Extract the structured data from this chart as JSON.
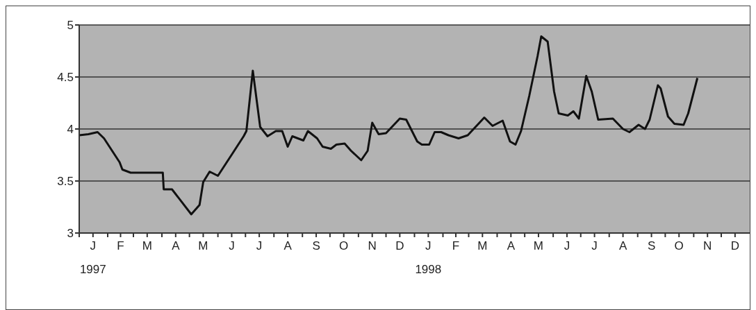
{
  "chart_data": {
    "type": "line",
    "x": [
      "1997-01-01",
      "1997-01-11",
      "1997-01-21",
      "1997-01-28",
      "1997-02-14",
      "1997-02-17",
      "1997-02-26",
      "1997-04-02",
      "1997-04-03",
      "1997-04-12",
      "1997-05-03",
      "1997-05-12",
      "1997-05-16",
      "1997-05-23",
      "1997-06-01",
      "1997-06-18",
      "1997-06-29",
      "1997-07-02",
      "1997-07-09",
      "1997-07-17",
      "1997-07-25",
      "1997-08-03",
      "1997-08-10",
      "1997-08-16",
      "1997-08-21",
      "1997-09-02",
      "1997-09-07",
      "1997-09-17",
      "1997-09-23",
      "1997-10-02",
      "1997-10-08",
      "1997-10-17",
      "1997-10-24",
      "1997-11-04",
      "1997-11-11",
      "1997-11-16",
      "1997-11-23",
      "1997-12-01",
      "1997-12-16",
      "1997-12-23",
      "1998-01-04",
      "1998-01-09",
      "1998-01-17",
      "1998-01-23",
      "1998-01-30",
      "1998-02-07",
      "1998-02-18",
      "1998-02-28",
      "1998-03-18",
      "1998-03-27",
      "1998-04-07",
      "1998-04-15",
      "1998-04-21",
      "1998-04-27",
      "1998-05-06",
      "1998-05-15",
      "1998-05-19",
      "1998-05-26",
      "1998-06-02",
      "1998-06-07",
      "1998-06-17",
      "1998-06-23",
      "1998-06-29",
      "1998-07-07",
      "1998-07-13",
      "1998-07-20",
      "1998-08-05",
      "1998-08-16",
      "1998-08-23",
      "1998-09-02",
      "1998-09-09",
      "1998-09-14",
      "1998-09-23",
      "1998-09-26",
      "1998-10-04",
      "1998-10-11",
      "1998-10-21",
      "1998-10-26",
      "1998-11-05"
    ],
    "series": [
      {
        "color": "#111111",
        "values": [
          3.94,
          3.95,
          3.97,
          3.91,
          3.68,
          3.61,
          3.58,
          3.58,
          3.42,
          3.42,
          3.18,
          3.27,
          3.49,
          3.59,
          3.55,
          3.78,
          3.93,
          3.98,
          4.56,
          4.02,
          3.93,
          3.98,
          3.98,
          3.83,
          3.93,
          3.89,
          3.98,
          3.91,
          3.83,
          3.81,
          3.85,
          3.86,
          3.79,
          3.7,
          3.79,
          4.06,
          3.95,
          3.96,
          4.1,
          4.09,
          3.88,
          3.85,
          3.85,
          3.97,
          3.97,
          3.94,
          3.91,
          3.94,
          4.11,
          4.03,
          4.08,
          3.88,
          3.85,
          3.98,
          4.32,
          4.7,
          4.89,
          4.84,
          4.36,
          4.15,
          4.13,
          4.17,
          4.1,
          4.51,
          4.36,
          4.09,
          4.1,
          4,
          3.97,
          4.04,
          4,
          4.09,
          4.42,
          4.39,
          4.12,
          4.05,
          4.04,
          4.15,
          4.49
        ]
      }
    ],
    "xlim": [
      "1997-01-01",
      "1999-01-01"
    ],
    "xticks": [
      {
        "value": "1997-01-01",
        "label": null
      },
      {
        "value": "1997-01-16",
        "label": "J\n1997"
      },
      {
        "value": "1997-02-01",
        "label": null
      },
      {
        "value": "1997-02-15",
        "label": "F"
      },
      {
        "value": "1997-03-01",
        "label": null
      },
      {
        "value": "1997-03-16",
        "label": "M"
      },
      {
        "value": "1997-04-01",
        "label": null
      },
      {
        "value": "1997-04-16",
        "label": "A"
      },
      {
        "value": "1997-05-01",
        "label": null
      },
      {
        "value": "1997-05-16",
        "label": "M"
      },
      {
        "value": "1997-06-01",
        "label": null
      },
      {
        "value": "1997-06-16",
        "label": "J"
      },
      {
        "value": "1997-07-01",
        "label": null
      },
      {
        "value": "1997-07-16",
        "label": "J"
      },
      {
        "value": "1997-08-01",
        "label": null
      },
      {
        "value": "1997-08-16",
        "label": "A"
      },
      {
        "value": "1997-09-01",
        "label": null
      },
      {
        "value": "1997-09-16",
        "label": "S"
      },
      {
        "value": "1997-10-01",
        "label": null
      },
      {
        "value": "1997-10-16",
        "label": "O"
      },
      {
        "value": "1997-11-01",
        "label": null
      },
      {
        "value": "1997-11-16",
        "label": "N"
      },
      {
        "value": "1997-12-01",
        "label": null
      },
      {
        "value": "1997-12-16",
        "label": "D"
      },
      {
        "value": "1998-01-01",
        "label": null
      },
      {
        "value": "1998-01-16",
        "label": "J\n1998"
      },
      {
        "value": "1998-02-01",
        "label": null
      },
      {
        "value": "1998-02-15",
        "label": "F"
      },
      {
        "value": "1998-03-01",
        "label": null
      },
      {
        "value": "1998-03-16",
        "label": "M"
      },
      {
        "value": "1998-04-01",
        "label": null
      },
      {
        "value": "1998-04-16",
        "label": "A"
      },
      {
        "value": "1998-05-01",
        "label": null
      },
      {
        "value": "1998-05-16",
        "label": "M"
      },
      {
        "value": "1998-06-01",
        "label": null
      },
      {
        "value": "1998-06-16",
        "label": "J"
      },
      {
        "value": "1998-07-01",
        "label": null
      },
      {
        "value": "1998-07-16",
        "label": "J"
      },
      {
        "value": "1998-08-01",
        "label": null
      },
      {
        "value": "1998-08-16",
        "label": "A"
      },
      {
        "value": "1998-09-01",
        "label": null
      },
      {
        "value": "1998-09-16",
        "label": "S"
      },
      {
        "value": "1998-10-01",
        "label": null
      },
      {
        "value": "1998-10-16",
        "label": "O"
      },
      {
        "value": "1998-11-01",
        "label": null
      },
      {
        "value": "1998-11-16",
        "label": "N"
      },
      {
        "value": "1998-12-01",
        "label": null
      },
      {
        "value": "1998-12-16",
        "label": "D"
      }
    ],
    "ylim": [
      3,
      5
    ],
    "yticks": [
      3,
      3.5,
      4,
      4.5,
      5
    ],
    "grid": "y",
    "marker": "none",
    "line_style": "solid"
  }
}
